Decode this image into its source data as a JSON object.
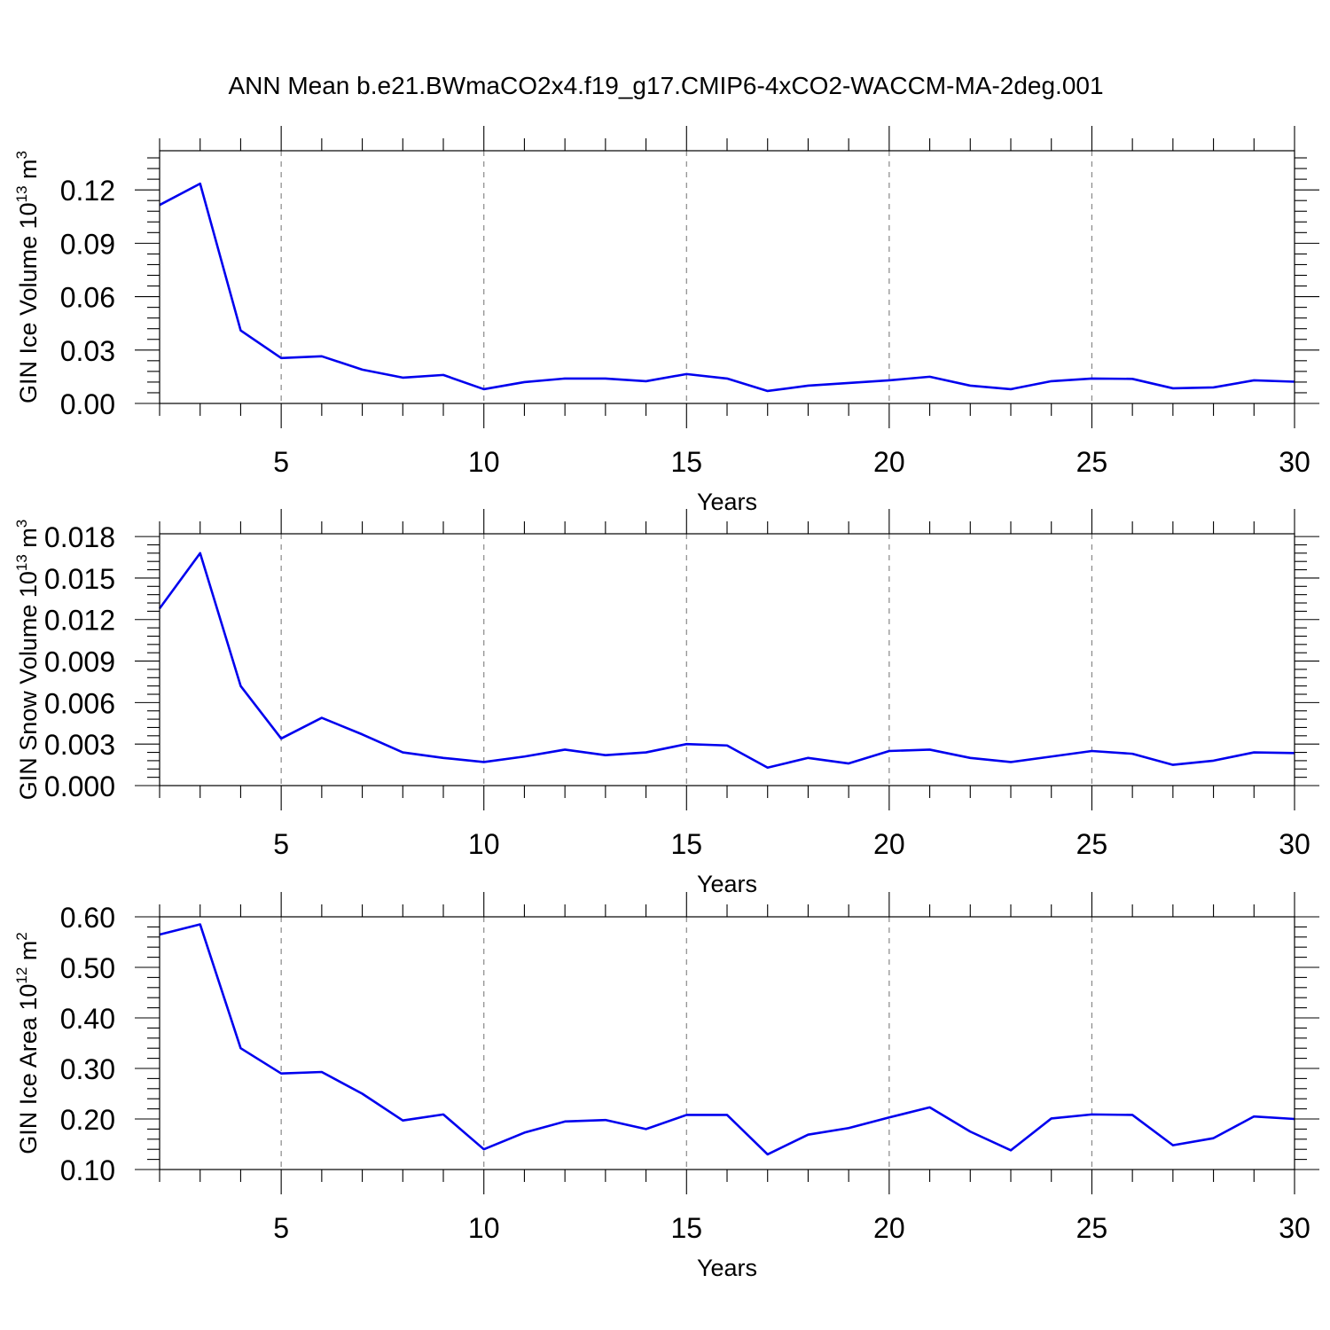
{
  "chart_data": {
    "type": "line",
    "title": "ANN Mean b.e21.BWmaCO2x4.f19_g17.CMIP6-4xCO2-WACCM-MA-2deg.001",
    "colors": {
      "line": "#0000ee",
      "frame": "#000000",
      "grid": "#888888"
    },
    "x": [
      2,
      3,
      4,
      5,
      6,
      7,
      8,
      9,
      10,
      11,
      12,
      13,
      14,
      15,
      16,
      17,
      18,
      19,
      20,
      21,
      22,
      23,
      24,
      25,
      26,
      27,
      28,
      29,
      30
    ],
    "panels": [
      {
        "ylabel": {
          "text": "GIN Ice Volume 10",
          "exp": "13",
          "unit": " m",
          "unit_exp": "3"
        },
        "xlabel": "Years",
        "xlim": [
          2,
          30
        ],
        "ylim": [
          0,
          0.142
        ],
        "xticks": [
          5,
          10,
          15,
          20,
          25,
          30
        ],
        "yticks": [
          0.0,
          0.03,
          0.06,
          0.09,
          0.12
        ],
        "ytick_labels": [
          "0.00",
          "0.03",
          "0.06",
          "0.09",
          "0.12"
        ],
        "series": [
          {
            "name": "GIN Ice Volume",
            "values": [
              0.1115,
              0.1235,
              0.041,
              0.0255,
              0.0265,
              0.019,
              0.0145,
              0.016,
              0.008,
              0.012,
              0.014,
              0.014,
              0.0125,
              0.0165,
              0.014,
              0.007,
              0.01,
              0.0115,
              0.013,
              0.015,
              0.01,
              0.008,
              0.0125,
              0.014,
              0.0138,
              0.0085,
              0.009,
              0.013,
              0.0122
            ]
          }
        ]
      },
      {
        "ylabel": {
          "text": "GIN Snow Volume 10",
          "exp": "13",
          "unit": " m",
          "unit_exp": "3"
        },
        "xlabel": "Years",
        "xlim": [
          2,
          30
        ],
        "ylim": [
          0,
          0.0182
        ],
        "xticks": [
          5,
          10,
          15,
          20,
          25,
          30
        ],
        "yticks": [
          0.0,
          0.003,
          0.006,
          0.009,
          0.012,
          0.015,
          0.018
        ],
        "ytick_labels": [
          "0.000",
          "0.003",
          "0.006",
          "0.009",
          "0.012",
          "0.015",
          "0.018"
        ],
        "series": [
          {
            "name": "GIN Snow Volume",
            "values": [
              0.0128,
              0.0168,
              0.0072,
              0.0034,
              0.0049,
              0.0037,
              0.0024,
              0.002,
              0.0017,
              0.0021,
              0.0026,
              0.0022,
              0.0024,
              0.003,
              0.0029,
              0.0013,
              0.002,
              0.0016,
              0.0025,
              0.0026,
              0.002,
              0.0017,
              0.0021,
              0.0025,
              0.0023,
              0.0015,
              0.0018,
              0.0024,
              0.00235
            ]
          }
        ]
      },
      {
        "ylabel": {
          "text": "GIN Ice Area 10",
          "exp": "12",
          "unit": " m",
          "unit_exp": "2"
        },
        "xlabel": "Years",
        "xlim": [
          2,
          30
        ],
        "ylim": [
          0.1,
          0.6
        ],
        "xticks": [
          5,
          10,
          15,
          20,
          25,
          30
        ],
        "yticks": [
          0.1,
          0.2,
          0.3,
          0.4,
          0.5,
          0.6
        ],
        "ytick_labels": [
          "0.10",
          "0.20",
          "0.30",
          "0.40",
          "0.50",
          "0.60"
        ],
        "series": [
          {
            "name": "GIN Ice Area",
            "values": [
              0.565,
              0.585,
              0.34,
              0.29,
              0.293,
              0.25,
              0.197,
              0.209,
              0.14,
              0.173,
              0.195,
              0.198,
              0.18,
              0.208,
              0.208,
              0.13,
              0.169,
              0.182,
              0.203,
              0.223,
              0.175,
              0.138,
              0.201,
              0.209,
              0.208,
              0.148,
              0.162,
              0.205,
              0.2
            ]
          }
        ]
      }
    ]
  }
}
